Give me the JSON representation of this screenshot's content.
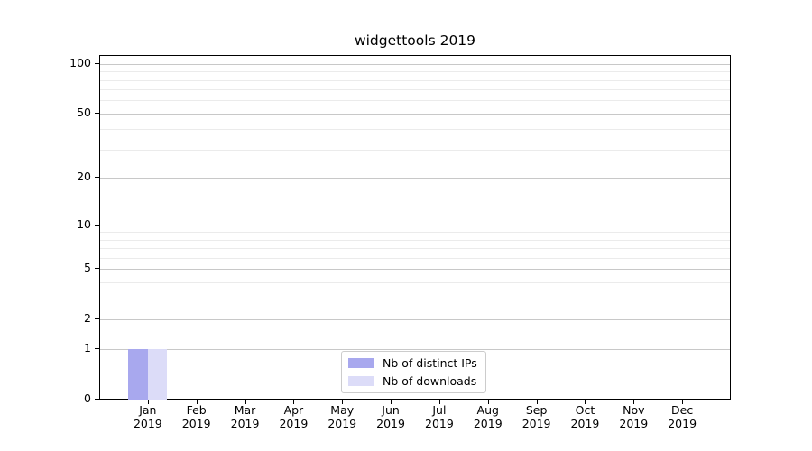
{
  "chart_data": {
    "type": "bar",
    "title": "widgettools 2019",
    "categories": [
      "Jan 2019",
      "Feb 2019",
      "Mar 2019",
      "Apr 2019",
      "May 2019",
      "Jun 2019",
      "Jul 2019",
      "Aug 2019",
      "Sep 2019",
      "Oct 2019",
      "Nov 2019",
      "Dec 2019"
    ],
    "series": [
      {
        "name": "Nb of distinct IPs",
        "color": "#a8a8ee",
        "values": [
          1,
          0,
          0,
          0,
          0,
          0,
          0,
          0,
          0,
          0,
          0,
          0
        ]
      },
      {
        "name": "Nb of downloads",
        "color": "#dcdcf8",
        "values": [
          1,
          0,
          0,
          0,
          0,
          0,
          0,
          0,
          0,
          0,
          0,
          0
        ]
      }
    ],
    "xlabel": "",
    "ylabel": "",
    "y_scale": "log10(1+y)",
    "y_major_ticks": [
      0,
      1,
      2,
      5,
      10,
      20,
      50,
      100
    ],
    "y_minor_gridlines": [
      3,
      4,
      6,
      7,
      8,
      9,
      30,
      40,
      60,
      70,
      80,
      90
    ],
    "ylim": [
      0,
      113
    ],
    "grid": true,
    "legend": {
      "position": "lower center"
    },
    "colors": {
      "major_grid": "#c8c8c8",
      "minor_grid": "#ebebeb",
      "axis": "#000000",
      "legend_border": "#cccccc",
      "background": "#ffffff"
    }
  }
}
